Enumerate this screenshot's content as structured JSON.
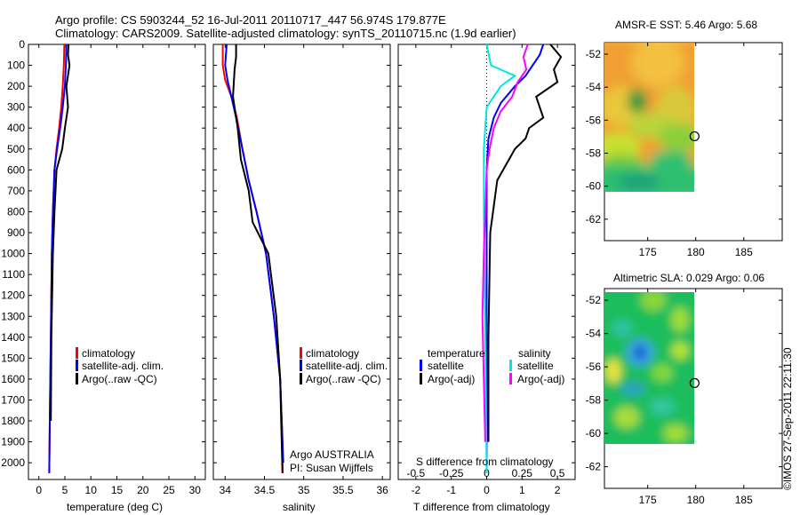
{
  "title_line1": "Argo profile: CS 5903244_52 16-Jul-2011 20110717_447 56.974S 179.877E",
  "title_line2": "Climatology: CARS2009. Satellite-adjusted climatology: synTS_20110715.nc (1.9d earlier)",
  "side_label": "©IMOS 27-Sep-2011 22:11:30",
  "colors": {
    "climatology": "#ff0000",
    "satellite": "#0000ff",
    "argo": "#000000",
    "satellite_s": "#00e5e5",
    "argo_s": "#ff00ff"
  },
  "chart_data": [
    {
      "type": "line",
      "id": "temperature",
      "xlabel": "temperature (deg C)",
      "ylabel": "",
      "xlim": [
        -2,
        32
      ],
      "ylim": [
        2080,
        0
      ],
      "xticks": [
        0,
        5,
        10,
        15,
        20,
        25,
        30
      ],
      "yticks": [
        0,
        100,
        200,
        300,
        400,
        500,
        600,
        700,
        800,
        900,
        1000,
        1100,
        1200,
        1300,
        1400,
        1500,
        1600,
        1700,
        1800,
        1900,
        2000
      ],
      "legend": [
        "climatology",
        "satellite-adj. clim.",
        "Argo(..raw -QC)"
      ],
      "series": [
        {
          "name": "climatology",
          "color": "#ff0000",
          "x": [
            4.9,
            4.8,
            4.6,
            4.3,
            3.9,
            3.4,
            3.0,
            2.7,
            2.5,
            2.3,
            2.1,
            2.0
          ],
          "y": [
            0,
            100,
            200,
            300,
            400,
            500,
            600,
            800,
            1000,
            1400,
            1800,
            2050
          ]
        },
        {
          "name": "satellite-adj. clim.",
          "color": "#0000ff",
          "x": [
            5.3,
            5.2,
            5.0,
            4.6,
            4.1,
            3.5,
            3.0,
            2.7,
            2.5,
            2.3,
            2.1,
            2.0
          ],
          "y": [
            0,
            100,
            200,
            300,
            400,
            500,
            600,
            800,
            1000,
            1400,
            1800,
            2050
          ]
        },
        {
          "name": "Argo(..raw -QC)",
          "color": "#000000",
          "x": [
            5.7,
            5.6,
            5.9,
            5.3,
            5.6,
            5.0,
            4.5,
            3.4,
            3.0,
            2.7,
            2.4,
            2.3
          ],
          "y": [
            0,
            50,
            100,
            200,
            300,
            400,
            500,
            600,
            800,
            1000,
            1400,
            1800
          ]
        }
      ]
    },
    {
      "type": "line",
      "id": "salinity",
      "xlabel": "salinity",
      "ylabel": "",
      "xlim": [
        33.85,
        36.1
      ],
      "ylim": [
        2080,
        0
      ],
      "xticks": [
        34,
        34.5,
        35,
        35.5,
        36
      ],
      "xticklabels": [
        "34",
        "34.5",
        "35",
        "35.5",
        "36"
      ],
      "legend": [
        "climatology",
        "satellite-adj. clim.",
        "Argo(..raw -QC)"
      ],
      "annotation_line1": "Argo AUSTRALIA",
      "annotation_line2": "PI: Susan Wijffels",
      "series": [
        {
          "name": "climatology",
          "color": "#ff0000",
          "x": [
            33.97,
            33.97,
            34.0,
            34.08,
            34.15,
            34.22,
            34.3,
            34.4,
            34.52,
            34.62,
            34.7,
            34.73,
            34.73
          ],
          "y": [
            0,
            100,
            170,
            250,
            350,
            500,
            650,
            800,
            1000,
            1300,
            1600,
            1900,
            2050
          ]
        },
        {
          "name": "satellite-adj. clim.",
          "color": "#0000ff",
          "x": [
            34.02,
            34.0,
            34.03,
            34.08,
            34.14,
            34.22,
            34.3,
            34.4,
            34.52,
            34.62,
            34.7,
            34.73,
            34.74
          ],
          "y": [
            0,
            100,
            170,
            250,
            350,
            500,
            650,
            800,
            1000,
            1300,
            1600,
            1900,
            2000
          ]
        },
        {
          "name": "Argo(..raw -QC)",
          "color": "#000000",
          "x": [
            34.14,
            34.14,
            34.12,
            34.1,
            34.16,
            34.2,
            34.3,
            34.35,
            34.55,
            34.65,
            34.7,
            34.72,
            34.73
          ],
          "y": [
            0,
            60,
            120,
            250,
            400,
            550,
            700,
            850,
            1000,
            1300,
            1600,
            1900,
            2050
          ]
        }
      ]
    },
    {
      "type": "line",
      "id": "differences",
      "xlabel": "T difference from climatology",
      "xlabel_top": "S difference from climatology",
      "xlim": [
        -2.5,
        2.5
      ],
      "ylim": [
        2080,
        0
      ],
      "xticks": [
        -2,
        -1,
        0,
        1,
        2
      ],
      "s_ticks": [
        -0.5,
        -0.25,
        0,
        0.25,
        0.5
      ],
      "s_ticklabels": [
        "-0.5",
        "-0.25",
        "0",
        "0.25",
        "0.5"
      ],
      "legend_t_header": "temperature",
      "legend_s_header": "salinity",
      "legend_t": [
        "satellite",
        "Argo(-adj)"
      ],
      "legend_s": [
        "satellite",
        "Argo(-adj)"
      ],
      "series": [
        {
          "name": "T satellite",
          "color": "#0000ff",
          "x": [
            1.6,
            1.5,
            1.3,
            1.1,
            0.8,
            0.4,
            0.2,
            0.05,
            0.0,
            0.0,
            0.0,
            0.0
          ],
          "y": [
            0,
            50,
            100,
            150,
            200,
            280,
            350,
            450,
            600,
            1000,
            1500,
            2050
          ]
        },
        {
          "name": "T Argo(-adj)",
          "color": "#000000",
          "x": [
            1.8,
            2.1,
            1.9,
            2.0,
            1.4,
            1.6,
            1.2,
            1.1,
            0.8,
            0.3,
            0.1,
            0.05,
            0.05
          ],
          "y": [
            0,
            60,
            120,
            180,
            250,
            350,
            400,
            450,
            500,
            650,
            900,
            1400,
            1900
          ]
        },
        {
          "name": "S satellite",
          "color": "#00e5e5",
          "x": [
            0.0,
            0.03,
            0.2,
            0.1,
            0.0,
            -0.02,
            -0.02,
            -0.01,
            0.0
          ],
          "y": [
            0,
            100,
            150,
            200,
            300,
            500,
            800,
            1400,
            2050
          ]
        },
        {
          "name": "S Argo(-adj)",
          "color": "#ff00ff",
          "x": [
            0.29,
            0.26,
            0.28,
            0.22,
            0.18,
            0.1,
            0.05,
            0.02,
            0.0,
            -0.01,
            -0.02,
            -0.03,
            -0.02,
            -0.01
          ],
          "y": [
            0,
            60,
            120,
            180,
            250,
            320,
            400,
            500,
            600,
            800,
            1000,
            1300,
            1600,
            1900
          ]
        }
      ]
    },
    {
      "type": "heatmap",
      "id": "sst_map",
      "title": "AMSR-E SST: 5.46 Argo: 5.68",
      "xlim": [
        170.5,
        189
      ],
      "ylim": [
        -63.3,
        -51.3
      ],
      "xticks": [
        175,
        180,
        185
      ],
      "yticks": [
        -52,
        -54,
        -56,
        -58,
        -60,
        -62
      ],
      "data_extent": {
        "x": [
          170.5,
          180.3
        ],
        "y": [
          -60.2,
          -51.3
        ]
      },
      "marker": {
        "lon": 179.877,
        "lat": -56.974
      }
    },
    {
      "type": "heatmap",
      "id": "sla_map",
      "title": "Altimetric SLA: 0.029 Argo: 0.06",
      "xlim": [
        170.5,
        189
      ],
      "ylim": [
        -63.3,
        -51.3
      ],
      "xticks": [
        175,
        180,
        185
      ],
      "yticks": [
        -52,
        -54,
        -56,
        -58,
        -60,
        -62
      ],
      "data_extent": {
        "x": [
          170.5,
          180.3
        ],
        "y": [
          -60.2,
          -51.3
        ]
      },
      "marker": {
        "lon": 179.877,
        "lat": -56.974
      }
    }
  ]
}
